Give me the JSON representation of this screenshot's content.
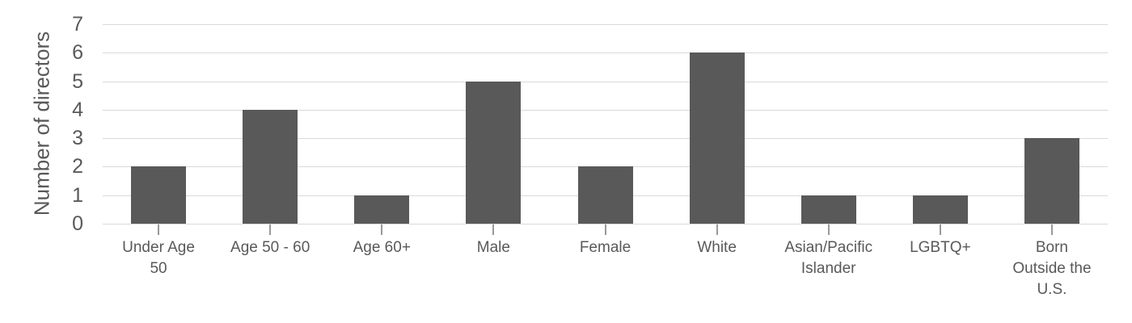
{
  "chart_data": {
    "type": "bar",
    "categories": [
      "Under Age\n50",
      "Age 50 - 60",
      "Age 60+",
      "Male",
      "Female",
      "White",
      "Asian/Pacific\nIslander",
      "LGBTQ+",
      "Born\nOutside the\nU.S."
    ],
    "values": [
      2,
      4,
      1,
      5,
      2,
      6,
      1,
      1,
      3
    ],
    "ylabel": "Number of directors",
    "yticks": [
      0,
      1,
      2,
      3,
      4,
      5,
      6,
      7
    ],
    "ylim": [
      0,
      7
    ],
    "grid": true,
    "legend_position": "none",
    "bar_color": "#595959",
    "grid_color": "#d9d9d9",
    "text_color": "#595959",
    "tick_mark_color": "#999999",
    "background_color": "#ffffff"
  }
}
